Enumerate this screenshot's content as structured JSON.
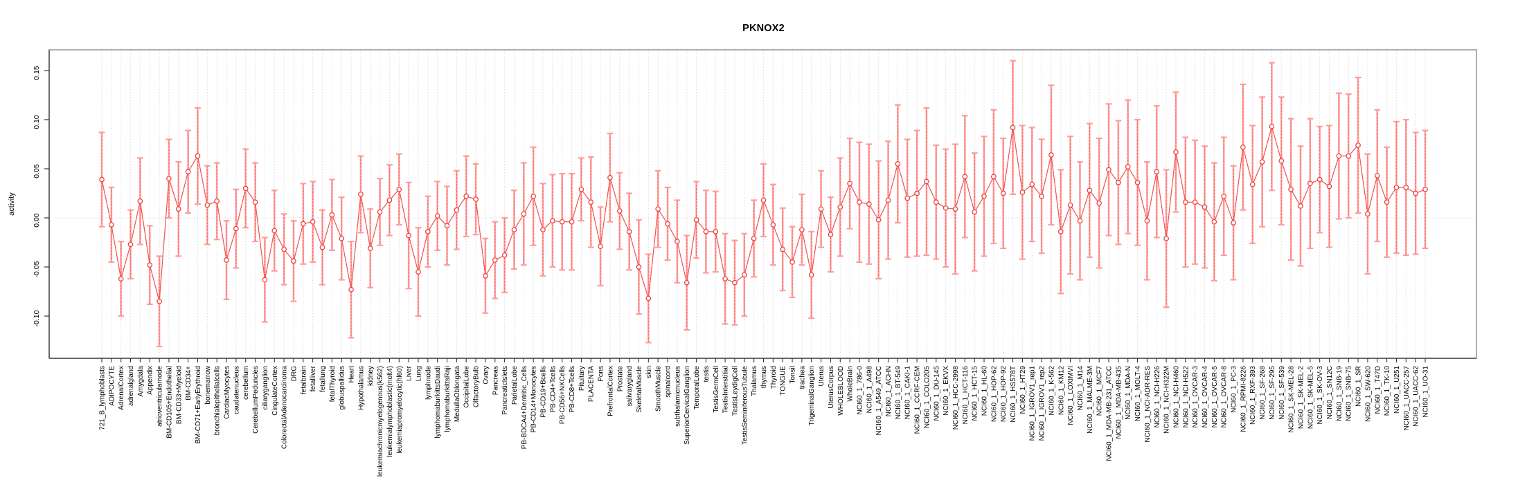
{
  "figure": {
    "title": "PKNOX2"
  },
  "chart_data": {
    "type": "line",
    "subtype": "points-with-error-bars",
    "title": "PKNOX2",
    "xlabel": "",
    "ylabel": "activity",
    "ylim": [
      -0.143,
      0.171
    ],
    "ytick_values": [
      -0.1,
      -0.05,
      0.0,
      0.05,
      0.1,
      0.15
    ],
    "ytick_labels": [
      "-0.10",
      "-0.05",
      "0.00",
      "0.05",
      "0.10",
      "0.15"
    ],
    "grid": "vertical dotted gridline per category; horizontal dotted line at 0",
    "legend_position": "none",
    "colors": {
      "point": "#ef413d",
      "line": "#f25551",
      "error_bar": "#ffa2a0",
      "error_cap": "#ff9d9b",
      "error_dash": "#f66662",
      "gridline": "#dcdcdc",
      "frame": "#9a9a9a",
      "axis": "#333333",
      "text": "#000000"
    },
    "categories": [
      "721_B_lymphoblasts",
      "ADIPOCYTE",
      "AdrenalCortex",
      "adrenalgland",
      "Amygdala",
      "Appendix",
      "atrioventricularnode",
      "BM-CD105+Endothelial",
      "BM-CD33+Myeloid",
      "BM-CD34+",
      "BM-CD71+EarlyErythroid",
      "bonemarrow",
      "bronchialepithelialcells",
      "CardiacMyocytes",
      "caudatenucleus",
      "cerebellum",
      "CerebellumPeduncles",
      "ciliaryganglion",
      "CingulateCortex",
      "ColorectalAdenocarcinoma",
      "DRG",
      "fetalbrain",
      "fetalliver",
      "fetallung",
      "fetalThyroid",
      "globuspallidus",
      "Heart",
      "Hypothalamus",
      "kidney",
      "leukemiachronicmyelogenous(k562)",
      "leukemialymphoblastic(molt4)",
      "leukemiapromyelocytic(hl60)",
      "Liver",
      "Lung",
      "lymphnode",
      "lymphomaburkittsDaudi",
      "lymphomaburkittsRaji",
      "MedullaOblongata",
      "OccipitalLobe",
      "OlfactoryBulb",
      "Ovary",
      "Pancreas",
      "PancreaticIslets",
      "ParietalLobe",
      "PB-BDCA4+Dentritic_Cells",
      "PB-CD14+Monocytes",
      "PB-CD19+Bcells",
      "PB-CD4+Tcells",
      "PB-CD56+NKCells",
      "PB-CD8+Tcells",
      "Pituitary",
      "PLACENTA",
      "Pons",
      "PrefrontalCortex",
      "Prostate",
      "salivarygland",
      "SkeletalMuscle",
      "skin",
      "SmoothMuscle",
      "spinalcord",
      "subthalamicnucleus",
      "SuperiorCervicalGanglion",
      "TemporalLobe",
      "testis",
      "TestisGermCell",
      "TestisInterstitial",
      "TestisLeydigCell",
      "TestisSeminiferousTubule",
      "Thalamus",
      "thymus",
      "Thyroid",
      "TONGUE",
      "Tonsil",
      "trachea",
      "TrigeminalGanglion",
      "Uterus",
      "UterusCorpus",
      "WHOLEBLOOD",
      "WholeBrain",
      "NCI60_1_786-0",
      "NCI60_1_A498",
      "NCI60_1_A549_ATCC",
      "NCI60_1_ACHN",
      "NCI60_1_BT-549",
      "NCI60_1_CAKI-1",
      "NCI60_1_CCRF-CEM",
      "NCI60_1_COLO205",
      "NCI60_1_DU-145",
      "NCI60_1_EKVX",
      "NCI60_1_HCC-2998",
      "NCI60_1_HCT-116",
      "NCI60_1_HCT-15",
      "NCI60_1_HL-60",
      "NCI60_1_HOP-62",
      "NCI60_1_HOP-92",
      "NCI60_1_HS578T",
      "NCI60_1_HT29",
      "NCI60_1_IGROV1_rep1",
      "NCI60_1_IGROV1_rep2",
      "NCI60_1_K-562",
      "NCI60_1_KM12",
      "NCI60_1_LOXIMVI",
      "NCI60_1_M14",
      "NCI60_1_MALME-3M",
      "NCI60_1_MCF7",
      "NCI60_1_MDA-MB-231_ATCC",
      "NCI60_1_MDA-MB-435",
      "NCI60_1_MDA-N",
      "NCI60_1_MOLT-4",
      "NCI60_1_NCI-ADR-RES",
      "NCI60_1_NCI-H226",
      "NCI60_1_NCI-H322M",
      "NCI60_1_NCI-H460",
      "NCI60_1_NCI-H522",
      "NCI60_1_OVCAR-3",
      "NCI60_1_OVCAR-4",
      "NCI60_1_OVCAR-5",
      "NCI60_1_OVCAR-8",
      "NCI60_1_PC-3",
      "NCI60_1_RPMI-8226",
      "NCI60_1_RXF-393",
      "NCI60_1_SF-268",
      "NCI60_1_SF-295",
      "NCI60_1_SF-539",
      "NCI60_1_SK-MEL-28",
      "NCI60_1_SK-MEL-2",
      "NCI60_1_SK-MEL-5",
      "NCI60_1_SK-OV-3",
      "NCI60_1_SN12C",
      "NCI60_1_SNB-19",
      "NCI60_1_SNB-75",
      "NCI60_1_SR",
      "NCI60_1_SW-620",
      "NCI60_1_T47D",
      "NCI60_1_TK-10",
      "NCI60_1_U251",
      "NCI60_1_UACC-257",
      "NCI60_1_UACC-62",
      "NCI60_1_UO-31"
    ],
    "series": [
      {
        "name": "activity",
        "values": [
          0.039,
          -0.007,
          -0.062,
          -0.027,
          0.017,
          -0.048,
          -0.085,
          0.04,
          0.009,
          0.047,
          0.063,
          0.013,
          0.017,
          -0.043,
          -0.011,
          0.03,
          0.016,
          -0.063,
          -0.013,
          -0.032,
          -0.044,
          -0.006,
          -0.004,
          -0.03,
          0.003,
          -0.021,
          -0.073,
          0.024,
          -0.031,
          0.006,
          0.018,
          0.029,
          -0.018,
          -0.055,
          -0.014,
          0.002,
          -0.008,
          0.008,
          0.022,
          0.019,
          -0.059,
          -0.043,
          -0.038,
          -0.012,
          0.004,
          0.022,
          -0.012,
          -0.003,
          -0.004,
          -0.004,
          0.029,
          0.016,
          -0.029,
          0.041,
          0.007,
          -0.014,
          -0.05,
          -0.082,
          0.009,
          -0.006,
          -0.024,
          -0.066,
          -0.002,
          -0.014,
          -0.014,
          -0.062,
          -0.066,
          -0.058,
          -0.021,
          0.018,
          -0.007,
          -0.032,
          -0.045,
          -0.012,
          -0.058,
          0.009,
          -0.017,
          0.011,
          0.035,
          0.016,
          0.014,
          -0.002,
          0.018,
          0.055,
          0.02,
          0.025,
          0.037,
          0.016,
          0.01,
          0.009,
          0.042,
          0.006,
          0.022,
          0.042,
          0.025,
          0.092,
          0.026,
          0.034,
          0.022,
          0.064,
          -0.014,
          0.013,
          -0.003,
          0.028,
          0.015,
          0.049,
          0.036,
          0.052,
          0.036,
          -0.003,
          0.047,
          -0.021,
          0.067,
          0.016,
          0.016,
          0.011,
          -0.004,
          0.022,
          -0.005,
          0.072,
          0.034,
          0.057,
          0.093,
          0.058,
          0.029,
          0.012,
          0.035,
          0.039,
          0.032,
          0.063,
          0.063,
          0.074,
          0.004,
          0.043,
          0.016,
          0.031,
          0.031,
          0.025,
          0.029
        ],
        "errors": [
          0.048,
          0.038,
          0.038,
          0.035,
          0.044,
          0.04,
          0.046,
          0.04,
          0.048,
          0.042,
          0.049,
          0.04,
          0.039,
          0.04,
          0.04,
          0.04,
          0.04,
          0.043,
          0.041,
          0.036,
          0.041,
          0.041,
          0.041,
          0.038,
          0.036,
          0.042,
          0.049,
          0.039,
          0.04,
          0.034,
          0.036,
          0.036,
          0.054,
          0.045,
          0.036,
          0.035,
          0.04,
          0.04,
          0.041,
          0.036,
          0.038,
          0.039,
          0.038,
          0.04,
          0.052,
          0.05,
          0.047,
          0.047,
          0.049,
          0.049,
          0.032,
          0.046,
          0.04,
          0.045,
          0.039,
          0.039,
          0.048,
          0.045,
          0.039,
          0.037,
          0.042,
          0.048,
          0.039,
          0.042,
          0.041,
          0.046,
          0.043,
          0.042,
          0.039,
          0.037,
          0.041,
          0.042,
          0.036,
          0.036,
          0.044,
          0.039,
          0.038,
          0.05,
          0.046,
          0.061,
          0.061,
          0.06,
          0.06,
          0.06,
          0.06,
          0.064,
          0.075,
          0.058,
          0.06,
          0.066,
          0.062,
          0.06,
          0.061,
          0.068,
          0.056,
          0.068,
          0.068,
          0.058,
          0.058,
          0.071,
          0.063,
          0.07,
          0.06,
          0.068,
          0.066,
          0.067,
          0.063,
          0.068,
          0.064,
          0.06,
          0.067,
          0.07,
          0.061,
          0.066,
          0.063,
          0.062,
          0.06,
          0.06,
          0.058,
          0.064,
          0.06,
          0.066,
          0.065,
          0.065,
          0.072,
          0.061,
          0.066,
          0.054,
          0.062,
          0.064,
          0.063,
          0.069,
          0.061,
          0.067,
          0.056,
          0.067,
          0.069,
          0.062,
          0.06
        ]
      }
    ]
  }
}
